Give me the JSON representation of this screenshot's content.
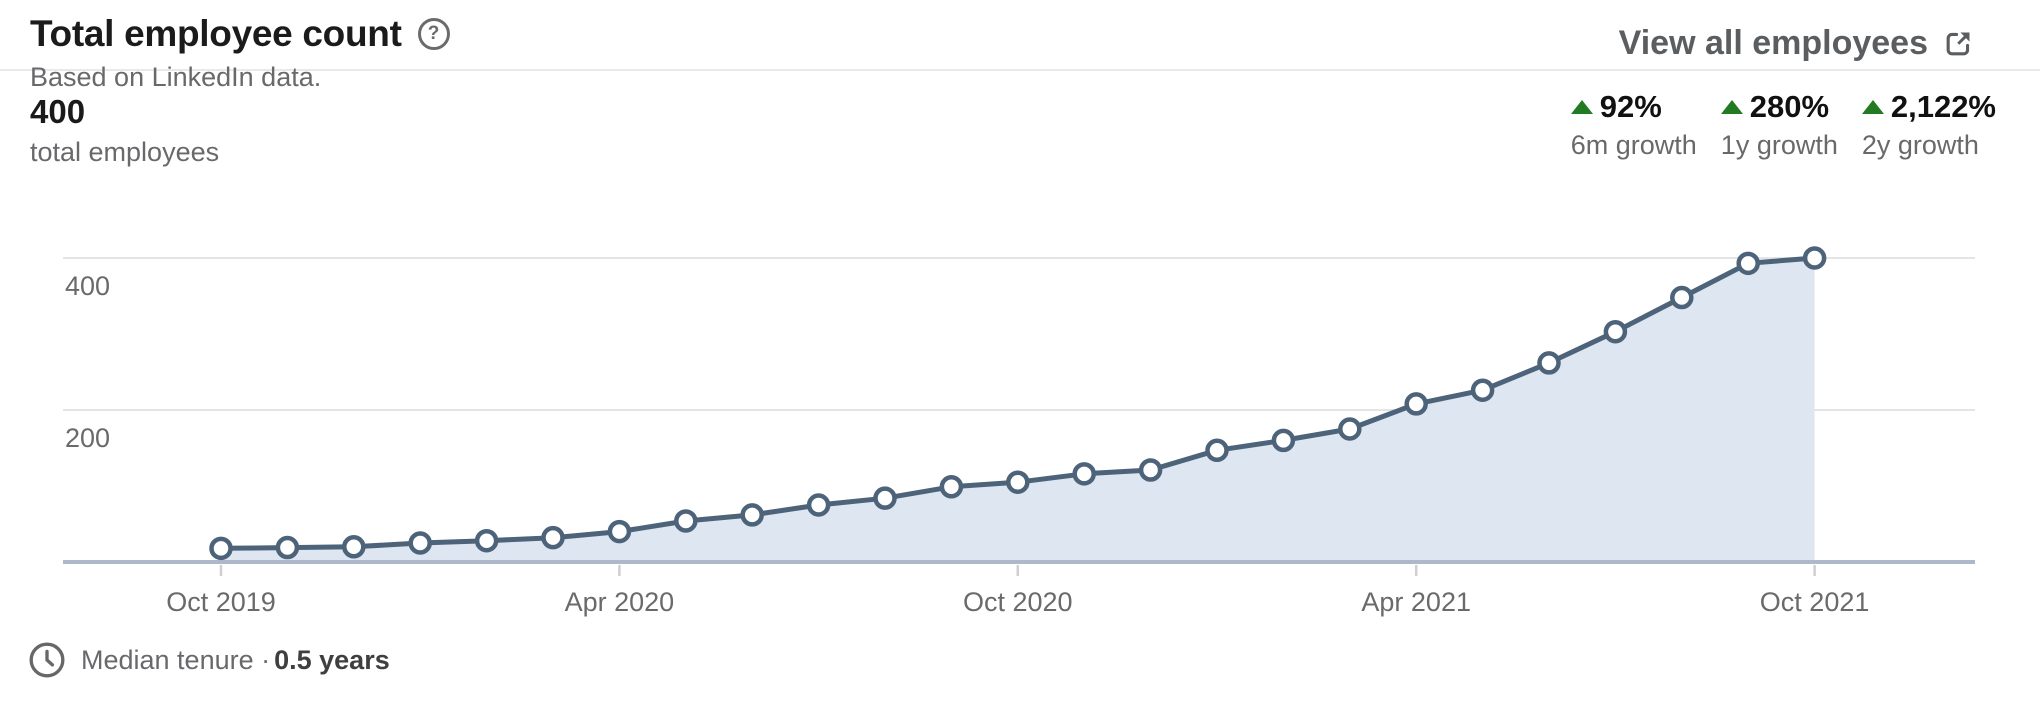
{
  "header": {
    "title": "Total employee count",
    "subtitle": "Based on LinkedIn data.",
    "help_icon": "question-mark-circle-icon",
    "view_all_label": "View all employees",
    "view_all_icon": "external-link-icon"
  },
  "stats": {
    "total": {
      "value": "400",
      "label": "total employees"
    },
    "growth": [
      {
        "value": "92%",
        "label": "6m growth",
        "direction": "up"
      },
      {
        "value": "280%",
        "label": "1y growth",
        "direction": "up"
      },
      {
        "value": "2,122%",
        "label": "2y growth",
        "direction": "up"
      }
    ]
  },
  "chart_data": {
    "type": "area",
    "title": "Total employee count",
    "x": [
      "Oct 2019",
      "Nov 2019",
      "Dec 2019",
      "Jan 2020",
      "Feb 2020",
      "Mar 2020",
      "Apr 2020",
      "May 2020",
      "Jun 2020",
      "Jul 2020",
      "Aug 2020",
      "Sep 2020",
      "Oct 2020",
      "Nov 2020",
      "Dec 2020",
      "Jan 2021",
      "Feb 2021",
      "Mar 2021",
      "Apr 2021",
      "May 2021",
      "Jun 2021",
      "Jul 2021",
      "Aug 2021",
      "Sep 2021",
      "Oct 2021"
    ],
    "values": [
      18,
      19,
      20,
      25,
      28,
      32,
      40,
      54,
      62,
      75,
      84,
      99,
      105,
      116,
      121,
      147,
      160,
      175,
      208,
      226,
      262,
      303,
      348,
      393,
      400
    ],
    "x_tick_labels": [
      "Oct 2019",
      "Apr 2020",
      "Oct 2020",
      "Apr 2021",
      "Oct 2021"
    ],
    "y_gridlines": [
      200,
      400
    ],
    "ylim": [
      0,
      440
    ],
    "xlabel": "",
    "ylabel": "",
    "legend": "none",
    "grid": "horizontal"
  },
  "footer": {
    "clock_icon": "clock-icon",
    "label": "Median tenure ·",
    "value": "0.5 years"
  },
  "colors": {
    "line": "#4d637a",
    "area_fill": "#dde6f1",
    "point_fill": "#ffffff",
    "axis_line": "#adb9cb",
    "gridline": "#e4e4e4",
    "tick": "#cfcfcf",
    "axis_text": "#6a6a6a",
    "growth_green": "#227a22"
  }
}
